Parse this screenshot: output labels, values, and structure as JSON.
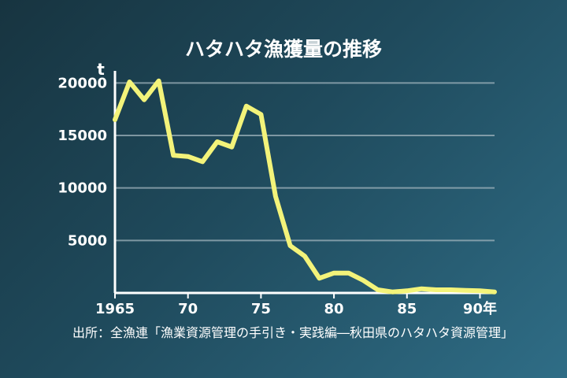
{
  "chart_data": {
    "type": "line",
    "title": "ハタハタ漁獲量の推移",
    "ylabel": "t",
    "xlabel": "",
    "x": [
      1965,
      1966,
      1967,
      1968,
      1969,
      1970,
      1971,
      1972,
      1973,
      1974,
      1975,
      1976,
      1977,
      1978,
      1979,
      1980,
      1981,
      1982,
      1983,
      1984,
      1985,
      1986,
      1987,
      1988,
      1989,
      1990,
      1991
    ],
    "series": [
      {
        "values": [
          16500,
          20100,
          18400,
          20200,
          13100,
          13000,
          12500,
          14400,
          13900,
          17800,
          17000,
          9200,
          4500,
          3500,
          1400,
          1900,
          1900,
          1200,
          300,
          100,
          200,
          400,
          300,
          300,
          250,
          200,
          100
        ]
      }
    ],
    "ylim": [
      0,
      20700
    ],
    "xlim": [
      1965,
      1991
    ],
    "y_ticks": [
      5000,
      10000,
      15000,
      20000
    ],
    "y_tick_labels": [
      "5000",
      "10000",
      "15000",
      "20000"
    ],
    "x_ticks": [
      1965,
      1970,
      1975,
      1980,
      1985,
      1990
    ],
    "x_tick_labels": [
      "1965",
      "70",
      "75",
      "80",
      "85",
      "90年"
    ],
    "grid": true,
    "line_color": "#f3f37a",
    "source": "出所：全漁連「漁業資源管理の手引き・実践編―秋田県のハタハタ資源管理」"
  }
}
